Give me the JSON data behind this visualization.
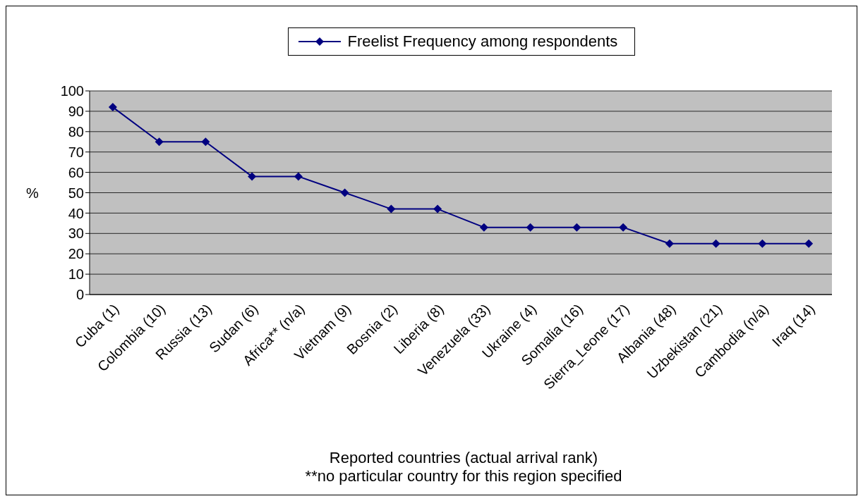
{
  "chart_data": {
    "type": "line",
    "xlabel": "Reported countries (actual arrival rank)",
    "ylabel": "%",
    "annotations": [
      "**no particular country for this region specified"
    ],
    "categories": [
      "Cuba (1)",
      "Colombia (10)",
      "Russia (13)",
      "Sudan (6)",
      "Africa** (n/a)",
      "Vietnam (9)",
      "Bosnia (2)",
      "Liberia (8)",
      "Venezuela (33)",
      "Ukraine (4)",
      "Somalia (16)",
      "Sierra_Leone (17)",
      "Albania (48)",
      "Uzbekistan (21)",
      "Cambodia (n/a)",
      "Iraq (14)"
    ],
    "series": [
      {
        "name": "Freelist Frequency among respondents",
        "color": "#000080",
        "values": [
          92,
          75,
          75,
          58,
          58,
          50,
          42,
          42,
          33,
          33,
          33,
          33,
          25,
          25,
          25,
          25
        ]
      }
    ],
    "ylim": [
      0,
      100
    ],
    "yticks": [
      0,
      10,
      20,
      30,
      40,
      50,
      60,
      70,
      80,
      90,
      100
    ],
    "grid": "y",
    "legend": "top",
    "marker": "diamond",
    "line_style": "solid"
  }
}
